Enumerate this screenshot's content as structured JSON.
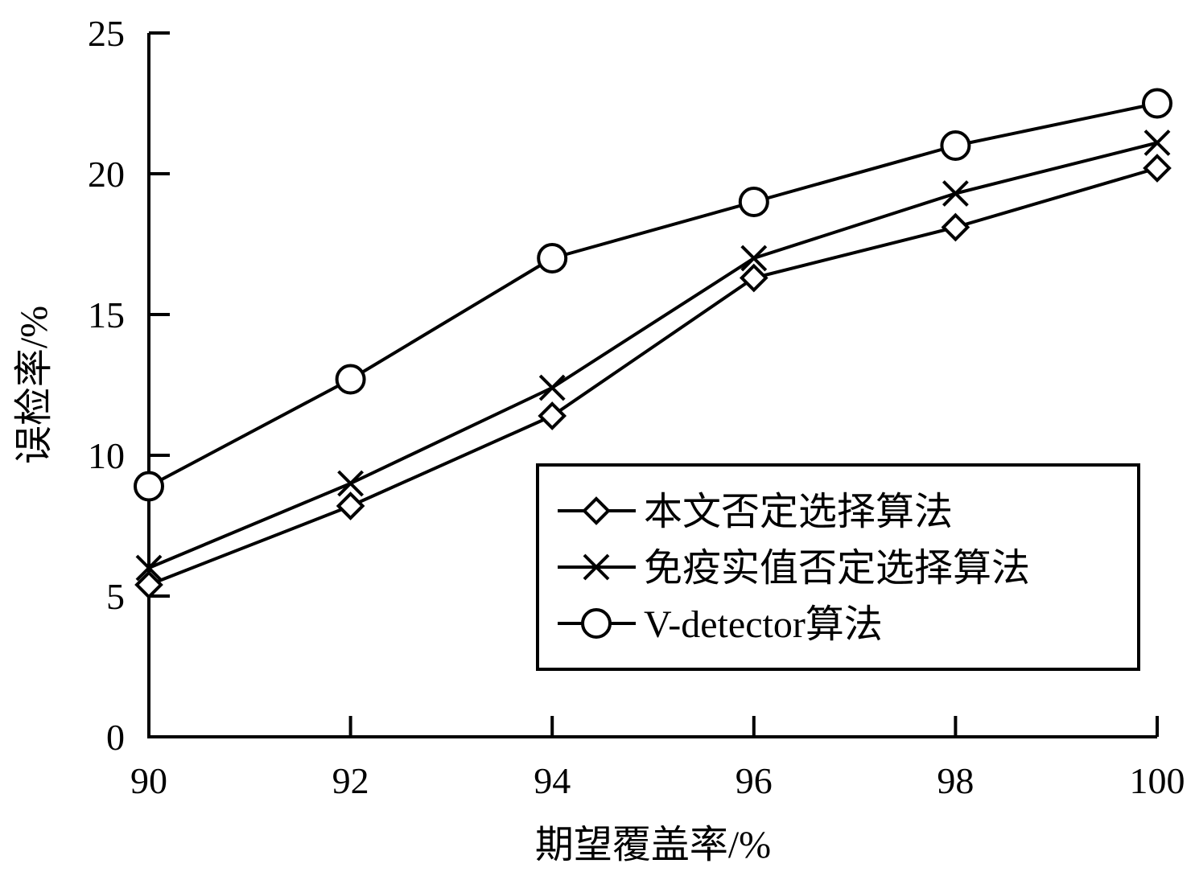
{
  "chart_data": {
    "type": "line",
    "title": "",
    "xlabel": "期望覆盖率/%",
    "ylabel": "误检率/%",
    "x": [
      90,
      92,
      94,
      96,
      98,
      100
    ],
    "x_tick_labels": [
      "90",
      "92",
      "94",
      "96",
      "98",
      "100"
    ],
    "y_tick_labels": [
      "0",
      "5",
      "10",
      "15",
      "20",
      "25"
    ],
    "xlim": [
      90,
      100
    ],
    "ylim": [
      0,
      25
    ],
    "grid": false,
    "legend_position": "lower-right",
    "series": [
      {
        "name": "本文否定选择算法",
        "marker": "diamond",
        "values": [
          5.4,
          8.2,
          11.4,
          16.3,
          18.1,
          20.2
        ]
      },
      {
        "name": "免疫实值否定选择算法",
        "marker": "cross",
        "values": [
          6.0,
          9.0,
          12.4,
          17.0,
          19.3,
          21.1
        ]
      },
      {
        "name": "V-detector算法",
        "marker": "circle",
        "values": [
          8.9,
          12.7,
          17.0,
          19.0,
          21.0,
          22.5
        ]
      }
    ],
    "colors": {
      "line": "#000000",
      "marker_fill": "#ffffff",
      "background": "#ffffff"
    }
  }
}
